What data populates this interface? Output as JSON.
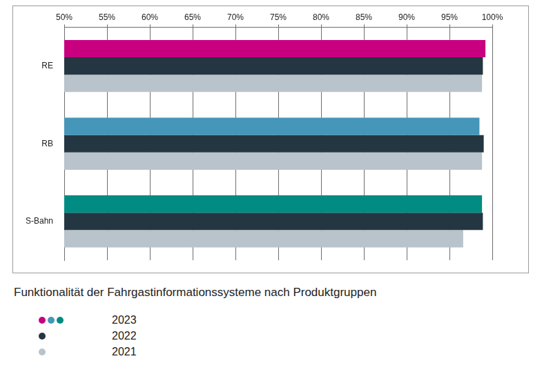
{
  "chart_data": {
    "type": "bar",
    "orientation": "horizontal",
    "title": "Funktionalität der Fahrgastinformationssysteme nach Produktgruppen",
    "categories": [
      "RE",
      "RB",
      "S-Bahn"
    ],
    "series": [
      {
        "name": "2023",
        "colors": [
          "#c8007f",
          "#4596b8",
          "#008c82"
        ],
        "values": [
          99.2,
          98.5,
          98.8
        ]
      },
      {
        "name": "2022",
        "color": "#243641",
        "values": [
          98.9,
          99.0,
          98.9
        ]
      },
      {
        "name": "2021",
        "color": "#b9c3cb",
        "values": [
          98.8,
          98.8,
          96.6
        ]
      }
    ],
    "xlim": [
      50,
      100
    ],
    "xticks": [
      {
        "value": 50,
        "label": "50%"
      },
      {
        "value": 55,
        "label": "55%"
      },
      {
        "value": 60,
        "label": "60%"
      },
      {
        "value": 65,
        "label": "65%"
      },
      {
        "value": 70,
        "label": "70%"
      },
      {
        "value": 75,
        "label": "75%"
      },
      {
        "value": 80,
        "label": "80%"
      },
      {
        "value": 85,
        "label": "85%"
      },
      {
        "value": 90,
        "label": "90%"
      },
      {
        "value": 95,
        "label": "95%"
      },
      {
        "value": 100,
        "label": "100%"
      }
    ],
    "grid": true,
    "legend": "bottom-left"
  }
}
